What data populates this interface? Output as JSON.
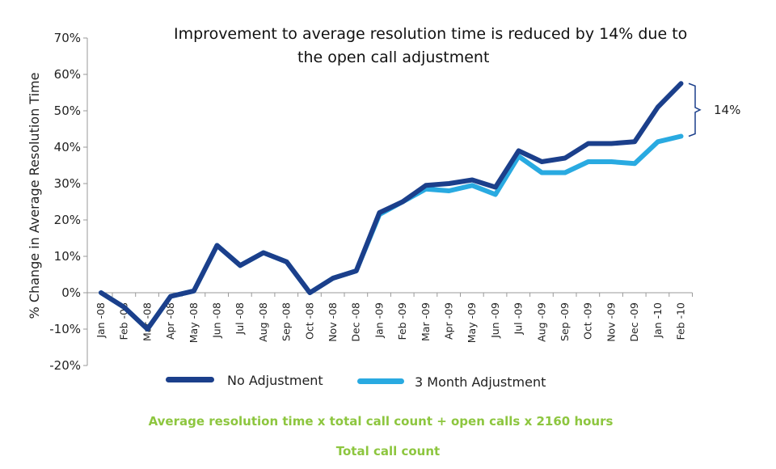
{
  "title_line1": "Improvement to average resolution time is reduced by 14% due to",
  "title_line2": "the open call adjustment",
  "formula_numerator": "Average resolution time x total call count + open calls x 2160 hours",
  "formula_denominator": "Total call count",
  "annotation": "14%",
  "colors": {
    "no_adjustment": "#1b3f8b",
    "three_month": "#29aae1",
    "formula": "#8dc63f",
    "bracket": "#1b3f8b",
    "axis": "#999999"
  },
  "chart_data": {
    "type": "line",
    "title": "Improvement to average resolution time is reduced by 14% due to the open call adjustment",
    "ylabel": "% Change in Average Resolution Time",
    "xlabel": "",
    "ylim": [
      -20,
      70
    ],
    "yticks": [
      -20,
      -10,
      0,
      10,
      20,
      30,
      40,
      50,
      60,
      70
    ],
    "ytick_labels": [
      "-20%",
      "-10%",
      "0%",
      "10%",
      "20%",
      "30%",
      "40%",
      "50%",
      "60%",
      "70%"
    ],
    "categories": [
      "Jan -08",
      "Feb -08",
      "Mar -08",
      "Apr -08",
      "May -08",
      "Jun -08",
      "Jul -08",
      "Aug -08",
      "Sep -08",
      "Oct -08",
      "Nov -08",
      "Dec -08",
      "Jan -09",
      "Feb -09",
      "Mar -09",
      "Apr -09",
      "May -09",
      "Jun -09",
      "Jul -09",
      "Aug -09",
      "Sep -09",
      "Oct -09",
      "Nov -09",
      "Dec -09",
      "Jan -10",
      "Feb -10"
    ],
    "series": [
      {
        "name": "No Adjustment",
        "values": [
          0,
          -4,
          -10,
          -1,
          0.5,
          13,
          7.5,
          11,
          8.5,
          0,
          4,
          6,
          22,
          25,
          29.5,
          30,
          31,
          29,
          39,
          36,
          37,
          41,
          41,
          41.5,
          51,
          57.5
        ]
      },
      {
        "name": "3 Month Adjustment",
        "values": [
          0,
          -4,
          -10,
          -1,
          0.5,
          13,
          7.5,
          11,
          8.5,
          0,
          4,
          6,
          21.5,
          25,
          28.5,
          28,
          29.5,
          27,
          37.5,
          33,
          33,
          36,
          36,
          35.5,
          41.5,
          43
        ]
      }
    ],
    "legend_position": "bottom",
    "grid": false
  }
}
